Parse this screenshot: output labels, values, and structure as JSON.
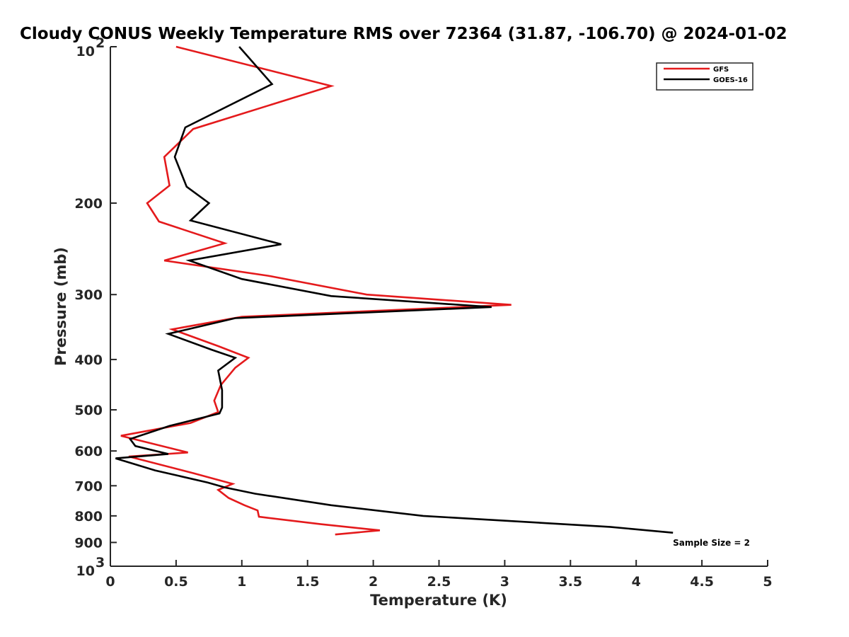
{
  "chart_data": {
    "type": "line",
    "title": "Cloudy CONUS Weekly Temperature RMS over 72364 (31.87, -106.70) @ 2024-01-02",
    "xlabel": "Temperature (K)",
    "ylabel": "Pressure (mb)",
    "xlim": [
      0,
      5
    ],
    "ylim": [
      100,
      1000
    ],
    "yscale": "log",
    "y_reversed": true,
    "x_ticks": [
      0,
      0.5,
      1,
      1.5,
      2,
      2.5,
      3,
      3.5,
      4,
      4.5,
      5
    ],
    "x_tick_labels": [
      "0",
      "0.5",
      "1",
      "1.5",
      "2",
      "2.5",
      "3",
      "3.5",
      "4",
      "4.5",
      "5"
    ],
    "y_ticks": [
      100,
      200,
      300,
      400,
      500,
      600,
      700,
      800,
      900,
      1000
    ],
    "y_tick_labels": [
      {
        "base": "10",
        "exp": "2"
      },
      {
        "base": "200",
        "exp": ""
      },
      {
        "base": "300",
        "exp": ""
      },
      {
        "base": "400",
        "exp": ""
      },
      {
        "base": "500",
        "exp": ""
      },
      {
        "base": "600",
        "exp": ""
      },
      {
        "base": "700",
        "exp": ""
      },
      {
        "base": "800",
        "exp": ""
      },
      {
        "base": "900",
        "exp": ""
      },
      {
        "base": "10",
        "exp": "3"
      }
    ],
    "grid": false,
    "legend_position": "top-right",
    "annotation": "Sample Size = 2",
    "series": [
      {
        "name": "GFS",
        "color": "#e41a1c",
        "points": [
          [
            0.5,
            100
          ],
          [
            1.68,
            119
          ],
          [
            0.63,
            144
          ],
          [
            0.41,
            163
          ],
          [
            0.45,
            185
          ],
          [
            0.28,
            200
          ],
          [
            0.37,
            217
          ],
          [
            0.87,
            239
          ],
          [
            0.41,
            258
          ],
          [
            1.2,
            276
          ],
          [
            1.95,
            300
          ],
          [
            3.05,
            314
          ],
          [
            1.0,
            331
          ],
          [
            0.47,
            350
          ],
          [
            0.82,
            377
          ],
          [
            1.05,
            397
          ],
          [
            0.95,
            415
          ],
          [
            0.84,
            448
          ],
          [
            0.79,
            480
          ],
          [
            0.82,
            505
          ],
          [
            0.61,
            530
          ],
          [
            0.08,
            561
          ],
          [
            0.59,
            604
          ],
          [
            0.14,
            615
          ],
          [
            0.63,
            662
          ],
          [
            0.93,
            694
          ],
          [
            0.82,
            713
          ],
          [
            0.9,
            739
          ],
          [
            1.02,
            763
          ],
          [
            1.12,
            781
          ],
          [
            1.13,
            803
          ],
          [
            1.6,
            830
          ],
          [
            2.05,
            853
          ],
          [
            1.71,
            869
          ]
        ]
      },
      {
        "name": "GOES-16",
        "color": "#000000",
        "points": [
          [
            0.98,
            100
          ],
          [
            1.23,
            118
          ],
          [
            0.57,
            143
          ],
          [
            0.49,
            163
          ],
          [
            0.58,
            186
          ],
          [
            0.75,
            200
          ],
          [
            0.61,
            216
          ],
          [
            1.3,
            240
          ],
          [
            0.6,
            258
          ],
          [
            1.0,
            280
          ],
          [
            1.68,
            302
          ],
          [
            2.9,
            317
          ],
          [
            0.95,
            333
          ],
          [
            0.44,
            357
          ],
          [
            0.77,
            383
          ],
          [
            0.95,
            397
          ],
          [
            0.82,
            420
          ],
          [
            0.85,
            458
          ],
          [
            0.85,
            495
          ],
          [
            0.83,
            508
          ],
          [
            0.45,
            537
          ],
          [
            0.15,
            569
          ],
          [
            0.19,
            587
          ],
          [
            0.44,
            608
          ],
          [
            0.04,
            620
          ],
          [
            0.34,
            654
          ],
          [
            0.74,
            690
          ],
          [
            0.87,
            705
          ],
          [
            1.1,
            725
          ],
          [
            1.68,
            763
          ],
          [
            2.38,
            800
          ],
          [
            3.8,
            840
          ],
          [
            4.28,
            862
          ]
        ]
      }
    ]
  }
}
